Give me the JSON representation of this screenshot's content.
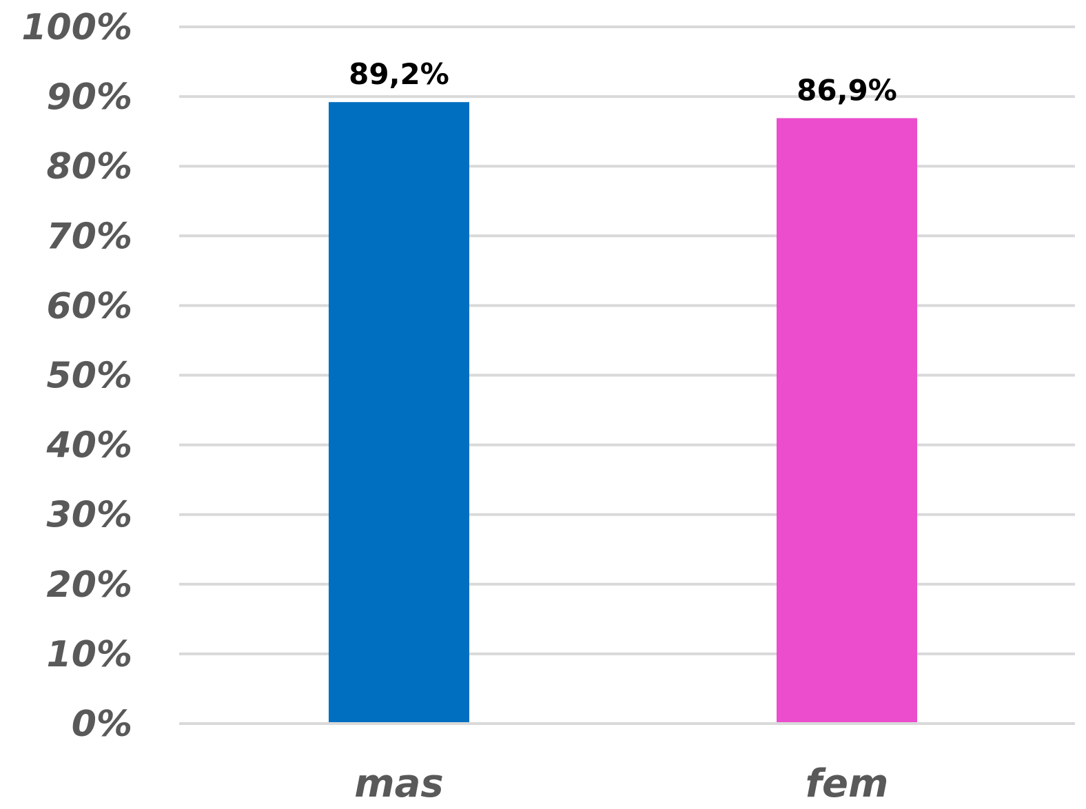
{
  "chart_data": {
    "type": "bar",
    "categories": [
      "mas",
      "fem"
    ],
    "values": [
      89.2,
      86.9
    ],
    "data_labels": [
      "89,2%",
      "86,9%"
    ],
    "colors": [
      "#006fc0",
      "#eb4dcd"
    ],
    "ylim": [
      0,
      100
    ],
    "yticks": [
      0,
      10,
      20,
      30,
      40,
      50,
      60,
      70,
      80,
      90,
      100
    ],
    "ytick_labels": [
      "0%",
      "10%",
      "20%",
      "30%",
      "40%",
      "50%",
      "60%",
      "70%",
      "80%",
      "90%",
      "100%"
    ],
    "grid": true,
    "legend": "none"
  }
}
